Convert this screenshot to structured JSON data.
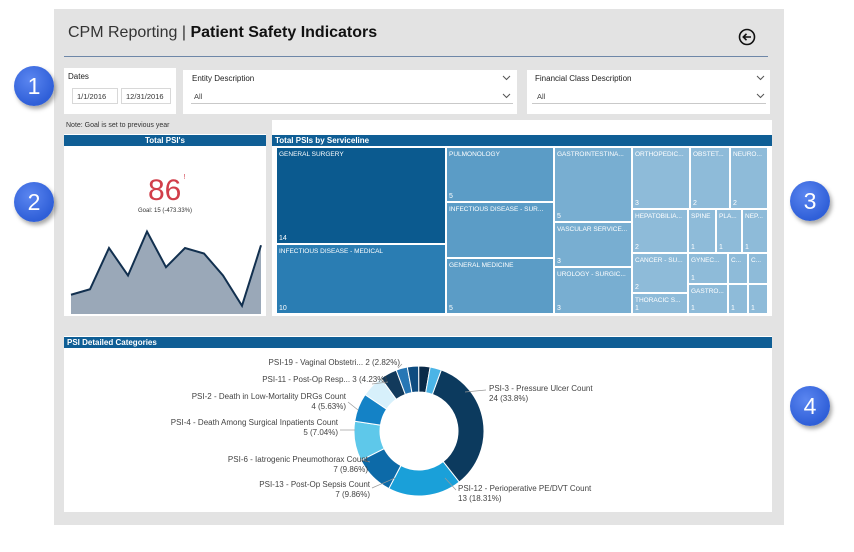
{
  "header": {
    "app_name": "CPM Reporting",
    "separator": "|",
    "page_title": "Patient Safety Indicators"
  },
  "filters": {
    "dates_label": "Dates",
    "start_date": "1/1/2016",
    "end_date": "12/31/2016",
    "entity": {
      "label": "Entity Description",
      "value": "All"
    },
    "financial_class": {
      "label": "Financial Class Description",
      "value": "All"
    }
  },
  "note": "Note: Goal is set to previous year",
  "total_psi": {
    "title": "Total PSI's",
    "value": "86",
    "indicator": "!",
    "goal_text": "Goal: 15 (-473.33%)",
    "sparkline": [
      7,
      9,
      24,
      14,
      30,
      17,
      24,
      22,
      14,
      3,
      25
    ]
  },
  "treemap": {
    "title": "Total PSIs by Serviceline",
    "tiles": [
      {
        "label": "GENERAL SURGERY",
        "value": "14"
      },
      {
        "label": "INFECTIOUS DISEASE - MEDICAL",
        "value": "10"
      },
      {
        "label": "PULMONOLOGY",
        "value": "5"
      },
      {
        "label": "INFECTIOUS DISEASE - SUR...",
        "value": ""
      },
      {
        "label": "GENERAL MEDICINE",
        "value": "5"
      },
      {
        "label": "GASTROINTESTINA...",
        "value": "5"
      },
      {
        "label": "VASCULAR SERVICE...",
        "value": "3"
      },
      {
        "label": "UROLOGY - SURGIC...",
        "value": "3"
      },
      {
        "label": "ORTHOPEDIC...",
        "value": "3"
      },
      {
        "label": "OBSTET...",
        "value": "2"
      },
      {
        "label": "NEURO...",
        "value": "2"
      },
      {
        "label": "HEPATOBILIA...",
        "value": "2"
      },
      {
        "label": "SPINE",
        "value": "1"
      },
      {
        "label": "PLA...",
        "value": "1"
      },
      {
        "label": "NEP...",
        "value": "1"
      },
      {
        "label": "CANCER - SU...",
        "value": "2"
      },
      {
        "label": "GYNEC...",
        "value": "1"
      },
      {
        "label": "C...",
        "value": ""
      },
      {
        "label": "C...",
        "value": ""
      },
      {
        "label": "THORACIC S...",
        "value": "1"
      },
      {
        "label": "GASTRO...",
        "value": "1"
      },
      {
        "label": "",
        "value": "1"
      },
      {
        "label": "",
        "value": "1"
      }
    ]
  },
  "chart_data": {
    "type": "pie",
    "title": "PSI Detailed Categories",
    "slices": [
      {
        "name": "PSI-3 - Pressure Ulcer Count",
        "value": 24,
        "pct": "33.8%",
        "color": "#0c3a5e"
      },
      {
        "name": "PSI-12 - Perioperative PE/DVT Count",
        "value": 13,
        "pct": "18.31%",
        "color": "#1aa0d9"
      },
      {
        "name": "PSI-13 - Post-Op Sepsis Count",
        "value": 7,
        "pct": "9.86%",
        "color": "#0d6aa8"
      },
      {
        "name": "PSI-6 - Iatrogenic Pneumothorax Count",
        "value": 7,
        "pct": "9.86%",
        "color": "#5ec8ea"
      },
      {
        "name": "PSI-4 - Death Among Surgical Inpatients Count",
        "value": 5,
        "pct": "7.04%",
        "color": "#1482c6"
      },
      {
        "name": "PSI-2 - Death in Low-Mortality DRGs Count",
        "value": 4,
        "pct": "5.63%",
        "color": "#d7f0fb"
      },
      {
        "name": "PSI-11 - Post-Op Resp...",
        "value": 3,
        "pct": "4.23%",
        "color": "#123a5c"
      },
      {
        "name": "PSI-19 - Vaginal Obstetri...",
        "value": 2,
        "pct": "2.82%",
        "color": "#2777b5"
      },
      {
        "name": "",
        "value": 2,
        "pct": "",
        "color": "#0e4c80"
      },
      {
        "name": "",
        "value": 2,
        "pct": "",
        "color": "#0a2a48"
      },
      {
        "name": "",
        "value": 2,
        "pct": "",
        "color": "#4bb4e6"
      }
    ],
    "labels": [
      {
        "line1": "PSI-3 - Pressure Ulcer Count",
        "line2": "24 (33.8%)"
      },
      {
        "line1": "PSI-12 - Perioperative PE/DVT Count",
        "line2": "13 (18.31%)"
      },
      {
        "line1": "PSI-13 - Post-Op Sepsis Count",
        "line2": "7 (9.86%)"
      },
      {
        "line1": "PSI-6 - Iatrogenic Pneumothorax Count",
        "line2": "7 (9.86%)"
      },
      {
        "line1": "PSI-4 - Death Among Surgical Inpatients Count",
        "line2": "5 (7.04%)"
      },
      {
        "line1": "PSI-2 - Death in Low-Mortality DRGs Count",
        "line2": "4 (5.63%)"
      },
      {
        "line1": "PSI-11 - Post-Op Resp... 3 (4.23%)",
        "line2": ""
      },
      {
        "line1": "PSI-19 - Vaginal Obstetri... 2 (2.82%)",
        "line2": ""
      }
    ]
  },
  "badges": [
    "1",
    "2",
    "3",
    "4"
  ]
}
